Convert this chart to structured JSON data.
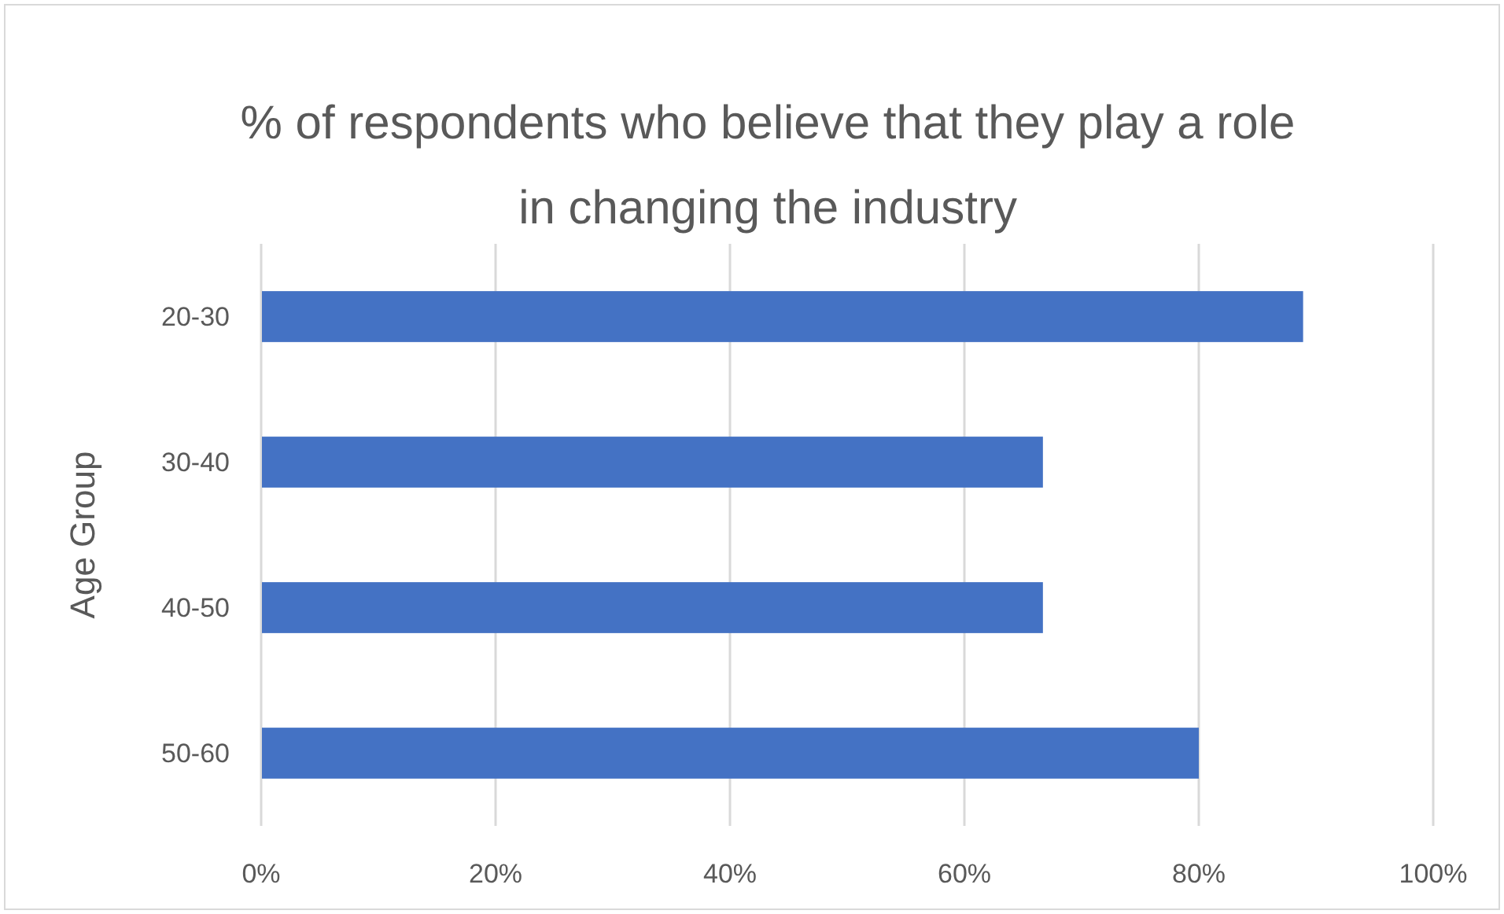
{
  "chart_data": {
    "type": "bar",
    "orientation": "horizontal",
    "title": "% of respondents who believe that they play a role in changing the industry",
    "ylabel": "Age Group",
    "categories": [
      "20-30",
      "30-40",
      "40-50",
      "50-60"
    ],
    "values": [
      88.9,
      66.7,
      66.7,
      80
    ],
    "color": "#4472c4",
    "xlim": [
      0,
      100
    ],
    "xticks": [
      {
        "value": 0,
        "label": "0%"
      },
      {
        "value": 20,
        "label": "20%"
      },
      {
        "value": 40,
        "label": "40%"
      },
      {
        "value": 60,
        "label": "60%"
      },
      {
        "value": 80,
        "label": "80%"
      },
      {
        "value": 100,
        "label": "100%"
      }
    ],
    "grid": "x"
  }
}
